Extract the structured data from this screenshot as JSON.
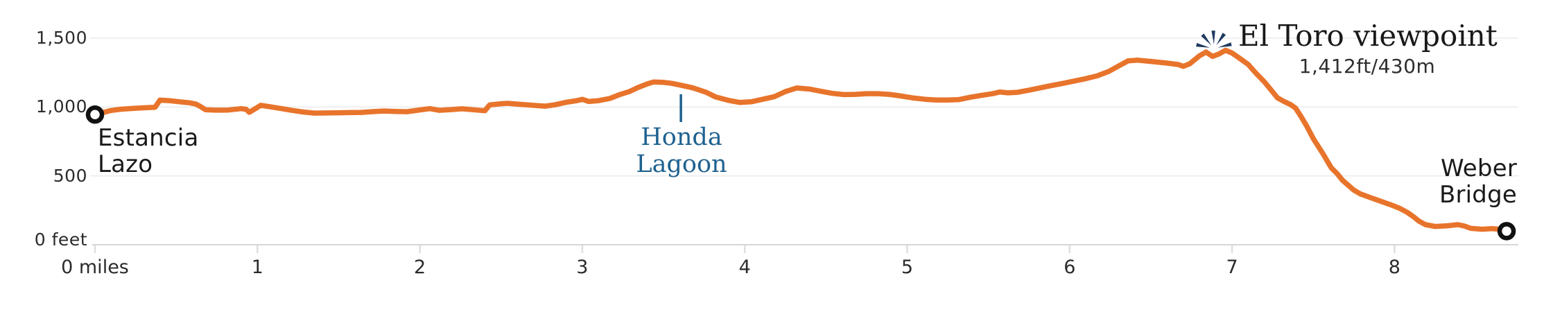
{
  "chart_data": {
    "type": "line",
    "title": "",
    "xlabel": "miles",
    "ylabel": "feet",
    "x_range": [
      0,
      8.76
    ],
    "y_range": [
      0,
      1500
    ],
    "grid": "horizontal-only",
    "line_color": "#e8742c",
    "x_ticks": [
      {
        "mile": 0,
        "label": "0 miles"
      },
      {
        "mile": 1,
        "label": "1"
      },
      {
        "mile": 2,
        "label": "2"
      },
      {
        "mile": 3,
        "label": "3"
      },
      {
        "mile": 4,
        "label": "4"
      },
      {
        "mile": 5,
        "label": "5"
      },
      {
        "mile": 6,
        "label": "6"
      },
      {
        "mile": 7,
        "label": "7"
      },
      {
        "mile": 8,
        "label": "8"
      }
    ],
    "y_ticks": [
      {
        "ft": 0,
        "label": "0 feet"
      },
      {
        "ft": 500,
        "label": "500"
      },
      {
        "ft": 1000,
        "label": "1,000"
      },
      {
        "ft": 1500,
        "label": "1,500"
      }
    ],
    "profile": [
      [
        0.0,
        945
      ],
      [
        0.05,
        960
      ],
      [
        0.1,
        975
      ],
      [
        0.16,
        984
      ],
      [
        0.24,
        990
      ],
      [
        0.32,
        995
      ],
      [
        0.37,
        998
      ],
      [
        0.4,
        1050
      ],
      [
        0.46,
        1046
      ],
      [
        0.52,
        1038
      ],
      [
        0.58,
        1031
      ],
      [
        0.62,
        1022
      ],
      [
        0.65,
        1003
      ],
      [
        0.68,
        980
      ],
      [
        0.74,
        977
      ],
      [
        0.82,
        978
      ],
      [
        0.9,
        988
      ],
      [
        0.93,
        983
      ],
      [
        0.95,
        962
      ],
      [
        0.99,
        990
      ],
      [
        1.02,
        1012
      ],
      [
        1.07,
        1003
      ],
      [
        1.14,
        990
      ],
      [
        1.21,
        976
      ],
      [
        1.28,
        964
      ],
      [
        1.35,
        956
      ],
      [
        1.44,
        957
      ],
      [
        1.54,
        959
      ],
      [
        1.64,
        961
      ],
      [
        1.72,
        967
      ],
      [
        1.78,
        971
      ],
      [
        1.85,
        968
      ],
      [
        1.92,
        966
      ],
      [
        1.99,
        977
      ],
      [
        2.06,
        988
      ],
      [
        2.12,
        976
      ],
      [
        2.19,
        981
      ],
      [
        2.26,
        987
      ],
      [
        2.33,
        980
      ],
      [
        2.4,
        973
      ],
      [
        2.43,
        1015
      ],
      [
        2.5,
        1024
      ],
      [
        2.54,
        1027
      ],
      [
        2.61,
        1020
      ],
      [
        2.69,
        1013
      ],
      [
        2.77,
        1006
      ],
      [
        2.83,
        1016
      ],
      [
        2.9,
        1034
      ],
      [
        2.97,
        1047
      ],
      [
        3.0,
        1056
      ],
      [
        3.04,
        1040
      ],
      [
        3.1,
        1046
      ],
      [
        3.17,
        1062
      ],
      [
        3.23,
        1090
      ],
      [
        3.29,
        1112
      ],
      [
        3.34,
        1140
      ],
      [
        3.4,
        1168
      ],
      [
        3.44,
        1182
      ],
      [
        3.5,
        1179
      ],
      [
        3.55,
        1172
      ],
      [
        3.61,
        1157
      ],
      [
        3.68,
        1139
      ],
      [
        3.76,
        1108
      ],
      [
        3.82,
        1073
      ],
      [
        3.9,
        1048
      ],
      [
        3.97,
        1033
      ],
      [
        4.04,
        1038
      ],
      [
        4.11,
        1056
      ],
      [
        4.18,
        1074
      ],
      [
        4.25,
        1112
      ],
      [
        4.32,
        1138
      ],
      [
        4.4,
        1130
      ],
      [
        4.47,
        1114
      ],
      [
        4.54,
        1099
      ],
      [
        4.61,
        1090
      ],
      [
        4.68,
        1092
      ],
      [
        4.75,
        1097
      ],
      [
        4.82,
        1097
      ],
      [
        4.89,
        1092
      ],
      [
        4.96,
        1080
      ],
      [
        5.04,
        1065
      ],
      [
        5.11,
        1056
      ],
      [
        5.18,
        1051
      ],
      [
        5.25,
        1051
      ],
      [
        5.32,
        1054
      ],
      [
        5.39,
        1071
      ],
      [
        5.46,
        1085
      ],
      [
        5.53,
        1098
      ],
      [
        5.57,
        1109
      ],
      [
        5.62,
        1103
      ],
      [
        5.68,
        1107
      ],
      [
        5.75,
        1122
      ],
      [
        5.82,
        1139
      ],
      [
        5.89,
        1156
      ],
      [
        5.96,
        1172
      ],
      [
        6.03,
        1189
      ],
      [
        6.1,
        1206
      ],
      [
        6.17,
        1226
      ],
      [
        6.24,
        1258
      ],
      [
        6.31,
        1303
      ],
      [
        6.36,
        1335
      ],
      [
        6.42,
        1340
      ],
      [
        6.5,
        1331
      ],
      [
        6.6,
        1319
      ],
      [
        6.67,
        1308
      ],
      [
        6.7,
        1295
      ],
      [
        6.74,
        1314
      ],
      [
        6.8,
        1372
      ],
      [
        6.84,
        1399
      ],
      [
        6.88,
        1367
      ],
      [
        6.92,
        1385
      ],
      [
        6.96,
        1412
      ],
      [
        7.0,
        1392
      ],
      [
        7.04,
        1359
      ],
      [
        7.1,
        1308
      ],
      [
        7.15,
        1242
      ],
      [
        7.2,
        1181
      ],
      [
        7.24,
        1124
      ],
      [
        7.28,
        1066
      ],
      [
        7.32,
        1040
      ],
      [
        7.36,
        1018
      ],
      [
        7.39,
        993
      ],
      [
        7.42,
        940
      ],
      [
        7.46,
        860
      ],
      [
        7.5,
        770
      ],
      [
        7.56,
        660
      ],
      [
        7.61,
        560
      ],
      [
        7.65,
        512
      ],
      [
        7.68,
        468
      ],
      [
        7.75,
        396
      ],
      [
        7.79,
        369
      ],
      [
        7.85,
        343
      ],
      [
        7.91,
        318
      ],
      [
        7.97,
        293
      ],
      [
        8.03,
        266
      ],
      [
        8.08,
        234
      ],
      [
        8.12,
        201
      ],
      [
        8.15,
        172
      ],
      [
        8.19,
        146
      ],
      [
        8.25,
        133
      ],
      [
        8.32,
        137
      ],
      [
        8.39,
        146
      ],
      [
        8.43,
        136
      ],
      [
        8.47,
        119
      ],
      [
        8.54,
        113
      ],
      [
        8.6,
        117
      ],
      [
        8.65,
        113
      ],
      [
        8.69,
        99
      ]
    ]
  },
  "annotations": {
    "start": {
      "line1": "Estancia",
      "line2": "Lazo",
      "mile": 0,
      "ft": 945
    },
    "end": {
      "line1": "Weber",
      "line2": "Bridge",
      "mile": 8.69,
      "ft": 99
    },
    "summit": {
      "title": "El Toro viewpoint",
      "subtitle": "1,412ft/430m",
      "mile": 6.96,
      "ft": 1412
    },
    "lagoon": {
      "line1": "Honda",
      "line2": "Lagoon",
      "mile": 3.607
    }
  },
  "colors": {
    "line": "#e8742c",
    "gridline": "#ececec",
    "axis": "#d6d6d6",
    "tick": "#dedede",
    "marker_ring": "#111111",
    "marker_fill": "#ffffff",
    "lagoon_blue": "#1e6190",
    "icon_navy": "#1f3a5f",
    "text_dark": "#1a1a1a"
  }
}
